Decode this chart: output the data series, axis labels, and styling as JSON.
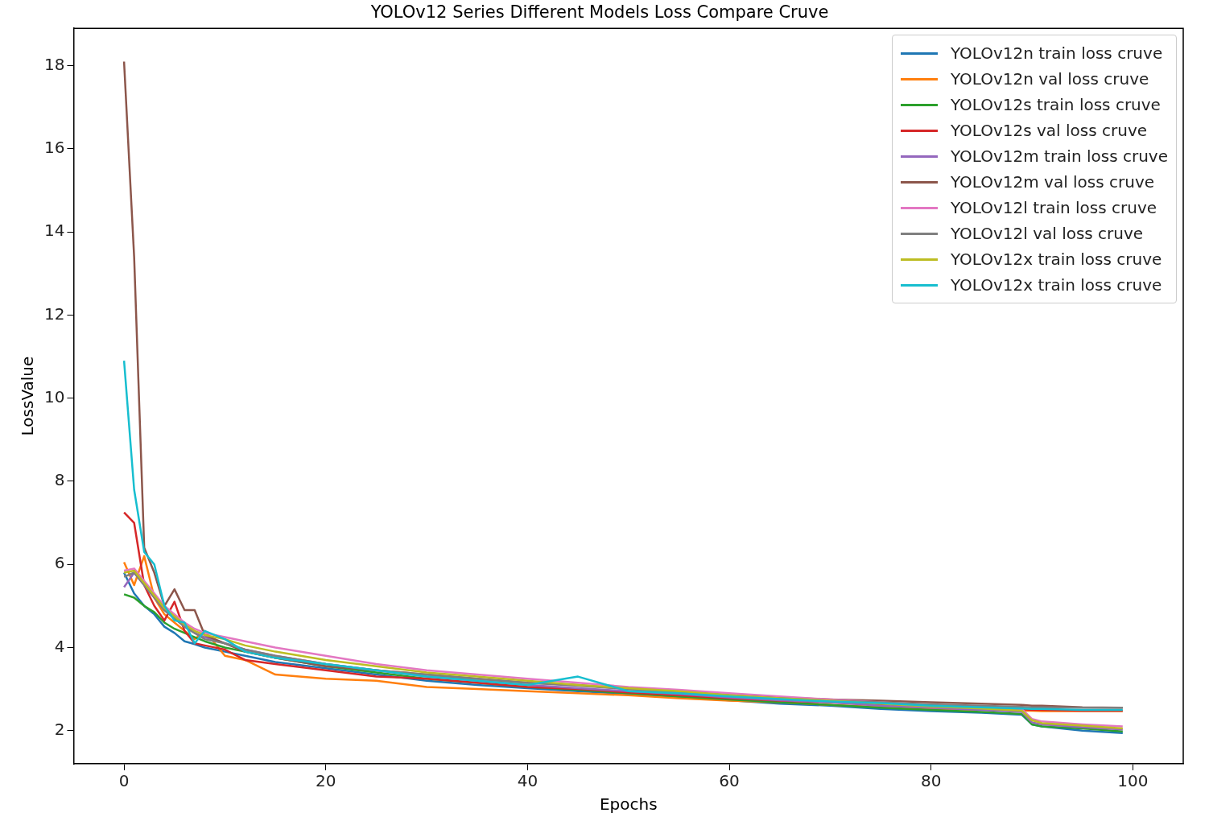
{
  "chart_data": {
    "type": "line",
    "title": "YOLOv12 Series Different Models Loss Compare Cruve",
    "xlabel": "Epochs",
    "ylabel": "LossValue",
    "x": [
      0,
      1,
      2,
      3,
      4,
      5,
      6,
      7,
      8,
      10,
      12,
      15,
      20,
      25,
      30,
      35,
      40,
      45,
      50,
      55,
      60,
      65,
      70,
      75,
      80,
      85,
      89,
      90,
      91,
      95,
      99
    ],
    "xlim": [
      -5,
      105
    ],
    "xticks": [
      0,
      20,
      40,
      60,
      80,
      100
    ],
    "ylim": [
      1.2,
      18.9
    ],
    "yticks": [
      2,
      4,
      6,
      8,
      10,
      12,
      14,
      16,
      18
    ],
    "grid": false,
    "legend": "top right",
    "marker": "none",
    "line_style": "solid",
    "series": [
      {
        "name": "YOLOv12n train loss cruve",
        "color": "#1f77b4",
        "values": [
          5.8,
          5.3,
          5.0,
          4.8,
          4.5,
          4.35,
          4.15,
          4.08,
          4.0,
          3.9,
          3.8,
          3.65,
          3.5,
          3.35,
          3.2,
          3.1,
          3.02,
          2.95,
          2.88,
          2.8,
          2.73,
          2.65,
          2.6,
          2.52,
          2.47,
          2.43,
          2.38,
          2.15,
          2.1,
          2.0,
          1.94
        ]
      },
      {
        "name": "YOLOv12n val loss cruve",
        "color": "#ff7f0e",
        "values": [
          6.05,
          5.5,
          6.2,
          5.2,
          4.8,
          4.6,
          4.4,
          4.2,
          4.4,
          3.8,
          3.7,
          3.35,
          3.25,
          3.2,
          3.05,
          3.0,
          2.95,
          2.9,
          2.85,
          2.78,
          2.72,
          2.68,
          2.62,
          2.57,
          2.52,
          2.5,
          2.48,
          2.48,
          2.47,
          2.47,
          2.47
        ]
      },
      {
        "name": "YOLOv12s train loss cruve",
        "color": "#2ca02c",
        "values": [
          5.28,
          5.2,
          5.0,
          4.85,
          4.6,
          4.45,
          4.35,
          4.25,
          4.15,
          4.0,
          3.9,
          3.75,
          3.55,
          3.4,
          3.25,
          3.15,
          3.05,
          2.98,
          2.9,
          2.82,
          2.75,
          2.68,
          2.62,
          2.55,
          2.5,
          2.45,
          2.4,
          2.15,
          2.1,
          2.05,
          1.98
        ]
      },
      {
        "name": "YOLOv12s val loss cruve",
        "color": "#d62728",
        "values": [
          7.25,
          7.0,
          5.5,
          5.0,
          4.65,
          5.1,
          4.4,
          4.1,
          4.05,
          3.95,
          3.7,
          3.6,
          3.45,
          3.3,
          3.25,
          3.15,
          3.05,
          3.0,
          2.92,
          2.85,
          2.78,
          2.72,
          2.68,
          2.62,
          2.58,
          2.55,
          2.52,
          2.5,
          2.5,
          2.48,
          2.48
        ]
      },
      {
        "name": "YOLOv12m train loss cruve",
        "color": "#9467bd",
        "values": [
          5.45,
          5.8,
          5.5,
          5.2,
          4.9,
          4.7,
          4.5,
          4.35,
          4.25,
          4.1,
          3.95,
          3.8,
          3.6,
          3.45,
          3.3,
          3.2,
          3.1,
          3.02,
          2.95,
          2.88,
          2.8,
          2.73,
          2.68,
          2.6,
          2.55,
          2.5,
          2.45,
          2.2,
          2.15,
          2.08,
          2.03
        ]
      },
      {
        "name": "YOLOv12m val loss cruve",
        "color": "#8c564b",
        "values": [
          18.1,
          13.4,
          6.4,
          5.8,
          5.0,
          5.4,
          4.9,
          4.9,
          4.3,
          4.1,
          3.9,
          3.75,
          3.55,
          3.45,
          3.35,
          3.25,
          3.15,
          3.1,
          3.0,
          2.95,
          2.85,
          2.8,
          2.75,
          2.72,
          2.68,
          2.65,
          2.62,
          2.6,
          2.6,
          2.56,
          2.55
        ]
      },
      {
        "name": "YOLOv12l train loss cruve",
        "color": "#e377c2",
        "values": [
          5.85,
          5.9,
          5.6,
          5.3,
          5.0,
          4.8,
          4.6,
          4.45,
          4.35,
          4.25,
          4.15,
          4.0,
          3.8,
          3.6,
          3.45,
          3.35,
          3.25,
          3.15,
          3.05,
          2.98,
          2.9,
          2.82,
          2.75,
          2.68,
          2.62,
          2.58,
          2.52,
          2.28,
          2.22,
          2.15,
          2.1
        ]
      },
      {
        "name": "YOLOv12l val loss cruve",
        "color": "#7f7f7f",
        "values": [
          5.7,
          5.8,
          5.5,
          5.2,
          4.9,
          4.7,
          4.5,
          4.35,
          4.2,
          4.1,
          3.95,
          3.8,
          3.6,
          3.45,
          3.35,
          3.25,
          3.15,
          3.08,
          3.0,
          2.92,
          2.85,
          2.78,
          2.72,
          2.68,
          2.63,
          2.6,
          2.57,
          2.56,
          2.56,
          2.55,
          2.55
        ]
      },
      {
        "name": "YOLOv12x train loss cruve",
        "color": "#bcbd22",
        "values": [
          5.8,
          5.85,
          5.55,
          5.25,
          4.95,
          4.75,
          4.55,
          4.4,
          4.3,
          4.2,
          4.05,
          3.9,
          3.7,
          3.55,
          3.4,
          3.3,
          3.2,
          3.1,
          3.02,
          2.95,
          2.85,
          2.78,
          2.72,
          2.65,
          2.58,
          2.53,
          2.48,
          2.25,
          2.18,
          2.12,
          2.05
        ]
      },
      {
        "name": "YOLOv12x train loss cruve",
        "color": "#17becf",
        "values": [
          10.9,
          7.8,
          6.3,
          6.0,
          5.0,
          4.65,
          4.6,
          4.1,
          4.4,
          4.2,
          3.9,
          3.75,
          3.6,
          3.45,
          3.3,
          3.2,
          3.1,
          3.3,
          2.95,
          2.9,
          2.82,
          2.76,
          2.7,
          2.66,
          2.6,
          2.56,
          2.53,
          2.52,
          2.52,
          2.5,
          2.5
        ]
      }
    ]
  }
}
